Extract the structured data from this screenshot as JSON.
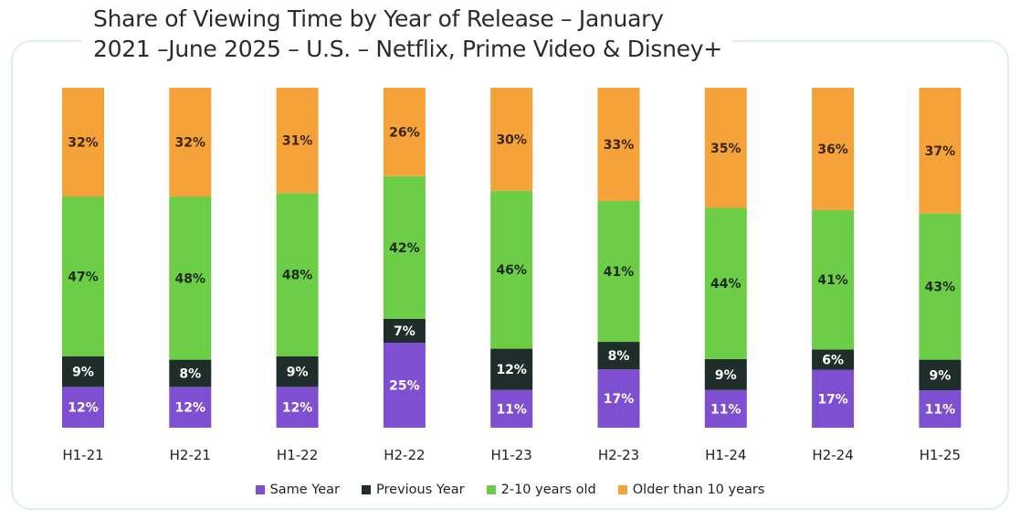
{
  "chart_data": {
    "type": "bar",
    "stacked": true,
    "title_lines": [
      "Share of Viewing Time by Year of Release – January",
      "2021 –June 2025 – U.S. – Netflix, Prime Video & Disney+"
    ],
    "categories": [
      "H1-21",
      "H2-21",
      "H1-22",
      "H2-22",
      "H1-23",
      "H2-23",
      "H1-24",
      "H2-24",
      "H1-25"
    ],
    "unit": "%",
    "ylim": [
      0,
      100
    ],
    "grid": false,
    "legend_position": "bottom",
    "series": [
      {
        "name": "Same Year",
        "color": "#7e4fd1",
        "label_color": "#ffffff",
        "values": [
          12,
          12,
          12,
          25,
          11,
          17,
          11,
          17,
          11
        ]
      },
      {
        "name": "Previous Year",
        "color": "#1f2e2a",
        "label_color": "#ffffff",
        "values": [
          9,
          8,
          9,
          7,
          12,
          8,
          9,
          6,
          9
        ]
      },
      {
        "name": "2-10 years old",
        "color": "#6ccd46",
        "label_color": "#1e2b1c",
        "values": [
          47,
          48,
          48,
          42,
          46,
          41,
          44,
          41,
          43
        ]
      },
      {
        "name": "Older than 10 years",
        "color": "#f5a23a",
        "label_color": "#3a2608",
        "values": [
          32,
          32,
          31,
          26,
          30,
          33,
          35,
          36,
          37
        ]
      }
    ]
  }
}
